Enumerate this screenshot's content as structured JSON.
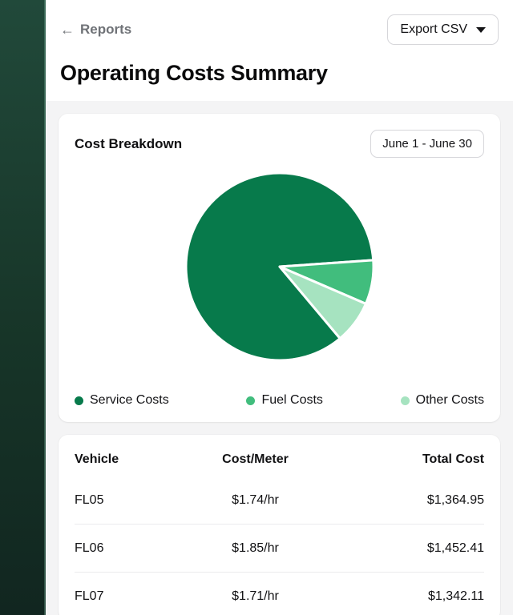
{
  "header": {
    "back_icon": "←",
    "back_label": "Reports",
    "export_button_label": "Export CSV",
    "page_title": "Operating Costs Summary"
  },
  "cost_breakdown_card": {
    "title": "Cost Breakdown",
    "date_range_label": "June 1 - June 30"
  },
  "chart_data": {
    "type": "pie",
    "title": "Cost Breakdown",
    "labels": [
      "Service Costs",
      "Fuel Costs",
      "Other Costs"
    ],
    "values_percent": [
      85,
      7.6,
      7.4
    ],
    "colors": [
      "#077a4b",
      "#41bd7d",
      "#a6e3c0"
    ],
    "start_angle_deg": 50,
    "slice_gap_color": "#ffffff",
    "legend_position": "bottom"
  },
  "table": {
    "columns": [
      "Vehicle",
      "Cost/Meter",
      "Total Cost"
    ],
    "rows": [
      [
        "FL05",
        "$1.74/hr",
        "$1,364.95"
      ],
      [
        "FL06",
        "$1.85/hr",
        "$1,452.41"
      ],
      [
        "FL07",
        "$1.71/hr",
        "$1,342.11"
      ]
    ]
  }
}
